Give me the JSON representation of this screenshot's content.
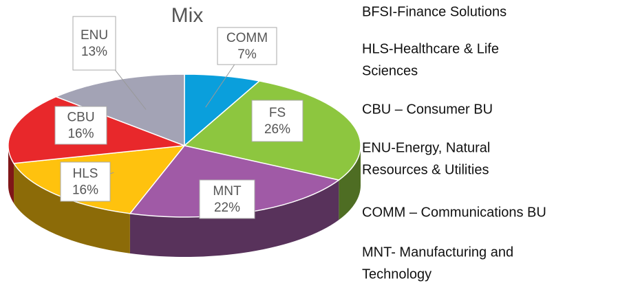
{
  "chart_data": {
    "type": "pie",
    "title": "Mix",
    "categories": [
      "COMM",
      "FS",
      "MNT",
      "HLS",
      "CBU",
      "ENU"
    ],
    "values": [
      7,
      26,
      22,
      16,
      16,
      13
    ],
    "value_labels": [
      "7%",
      "26%",
      "22%",
      "16%",
      "16%",
      "13%"
    ],
    "colors": [
      "#0a9fdc",
      "#8dc63f",
      "#a05aa6",
      "#ffc20e",
      "#e8282b",
      "#a3a3b5"
    ],
    "notes": [
      [
        "BFSI-Finance Solutions"
      ],
      [
        "HLS-Healthcare & Life",
        "Sciences"
      ],
      [
        "CBU – Consumer BU"
      ],
      [
        "ENU-Energy, Natural",
        "Resources & Utilities"
      ],
      [
        "COMM – Communications BU"
      ],
      [
        "MNT- Manufacturing and",
        "Technology"
      ]
    ]
  }
}
